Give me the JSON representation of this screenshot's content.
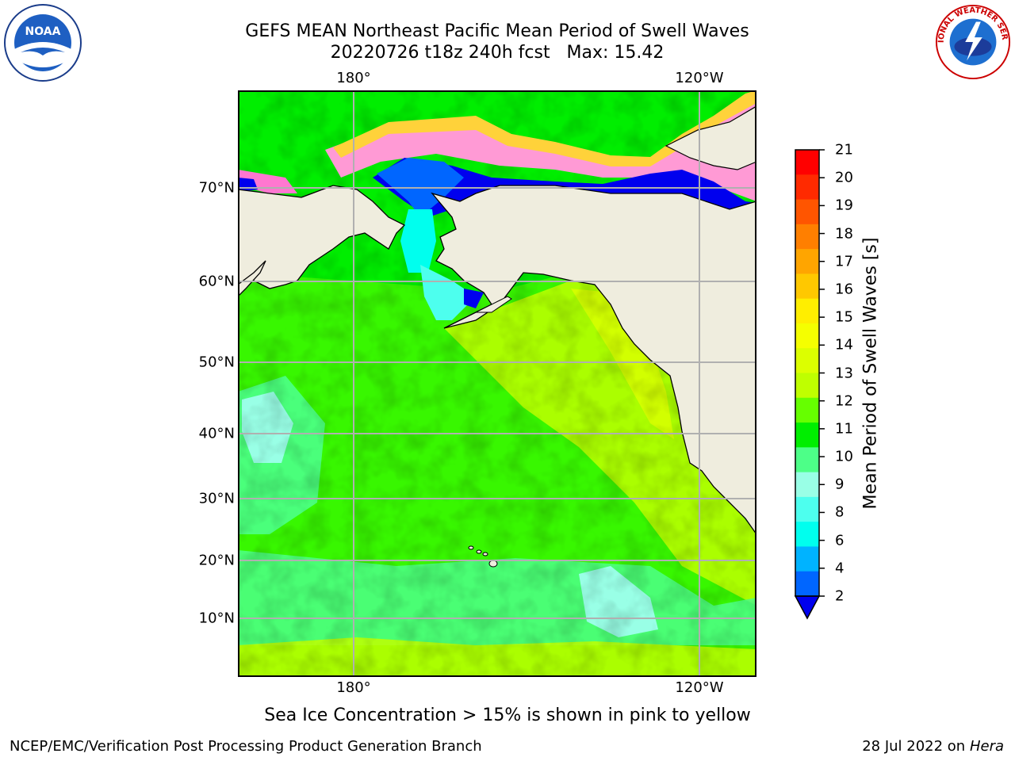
{
  "title": {
    "line1": "GEFS MEAN Northeast Pacific Mean Period of Swell Waves",
    "line2": "20220726 t18z 240h fcst   Max: 15.42"
  },
  "map": {
    "lon_labels_top": [
      "180°",
      "120°W"
    ],
    "lon_labels_bottom": [
      "180°",
      "120°W"
    ],
    "lat_labels": [
      "70°N",
      "60°N",
      "50°N",
      "40°N",
      "30°N",
      "20°N",
      "10°N"
    ],
    "land_color": "#efedde",
    "grid_color": "#b0b0b0"
  },
  "colorbar": {
    "label": "Mean Period of Swell Waves [s]",
    "ticks": [
      "21",
      "20",
      "19",
      "18",
      "17",
      "16",
      "15",
      "14",
      "13",
      "12",
      "11",
      "10",
      "9",
      "8",
      "6",
      "4",
      "2"
    ],
    "colors_top_to_bottom": [
      "#ff0000",
      "#ff2a00",
      "#ff5500",
      "#ff7f00",
      "#ffa500",
      "#ffc800",
      "#ffee00",
      "#f5ff00",
      "#dcff00",
      "#bfff00",
      "#66ff00",
      "#00ee00",
      "#4dff88",
      "#99ffe6",
      "#4dffee",
      "#00ffee",
      "#00b3ff",
      "#0066ff"
    ],
    "extend_color": "#0000ee"
  },
  "notes": {
    "ice": "Sea Ice Concentration > 15% is shown in pink to yellow"
  },
  "footer": {
    "left": "NCEP/EMC/Verification Post Processing Product Generation Branch",
    "date": "28 Jul 2022 on ",
    "machine": "Hera"
  },
  "logos": {
    "left": "NOAA",
    "right": "NATIONAL WEATHER SERVICE"
  }
}
